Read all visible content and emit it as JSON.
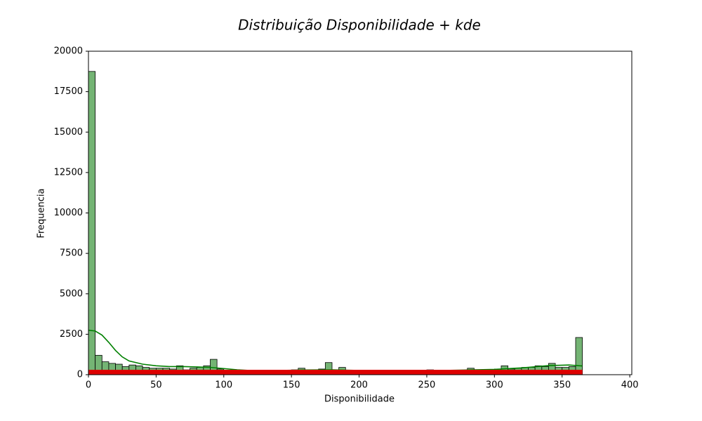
{
  "chart_data": {
    "type": "histogram",
    "title": "Distribuição Disponibilidade + kde",
    "x_label": "Disponibilidade",
    "y_label": "Frequencia",
    "bins": [
      0,
      5,
      10,
      15,
      20,
      25,
      30,
      35,
      40,
      45,
      50,
      55,
      60,
      65,
      70,
      75,
      80,
      85,
      90,
      95,
      100,
      105,
      110,
      115,
      120,
      125,
      130,
      135,
      140,
      145,
      150,
      155,
      160,
      165,
      170,
      175,
      180,
      185,
      190,
      195,
      200,
      205,
      210,
      215,
      220,
      225,
      230,
      235,
      240,
      245,
      250,
      255,
      260,
      265,
      270,
      275,
      280,
      285,
      290,
      295,
      300,
      305,
      310,
      315,
      320,
      325,
      330,
      335,
      340,
      345,
      350,
      355,
      360,
      365
    ],
    "values": [
      18750,
      1200,
      800,
      700,
      650,
      500,
      600,
      550,
      450,
      400,
      400,
      400,
      350,
      550,
      300,
      400,
      450,
      550,
      950,
      350,
      250,
      200,
      200,
      200,
      250,
      200,
      200,
      200,
      200,
      250,
      300,
      400,
      300,
      300,
      350,
      750,
      300,
      450,
      250,
      200,
      200,
      200,
      200,
      200,
      200,
      200,
      200,
      200,
      200,
      200,
      300,
      250,
      250,
      250,
      250,
      250,
      400,
      300,
      250,
      300,
      350,
      550,
      350,
      400,
      450,
      450,
      550,
      500,
      700,
      450,
      450,
      500,
      2300
    ],
    "color": "#74b474",
    "kde": {
      "color": "#008000",
      "x": [
        0,
        5,
        10,
        15,
        20,
        25,
        30,
        40,
        50,
        60,
        70,
        80,
        90,
        100,
        110,
        120,
        140,
        160,
        180,
        200,
        220,
        240,
        260,
        280,
        300,
        320,
        340,
        355,
        365
      ],
      "values": [
        2750,
        2700,
        2450,
        2000,
        1500,
        1100,
        850,
        650,
        550,
        500,
        500,
        480,
        450,
        380,
        300,
        260,
        260,
        290,
        300,
        260,
        230,
        240,
        260,
        290,
        330,
        420,
        560,
        600,
        540
      ]
    },
    "rug": {
      "color": "#dd0000"
    },
    "xlim": [
      0,
      401.5
    ],
    "ylim": [
      0,
      20000
    ],
    "xticks": [
      0,
      50,
      100,
      150,
      200,
      250,
      300,
      350,
      400
    ],
    "yticks": [
      0,
      2500,
      5000,
      7500,
      10000,
      12500,
      15000,
      17500,
      20000
    ]
  }
}
